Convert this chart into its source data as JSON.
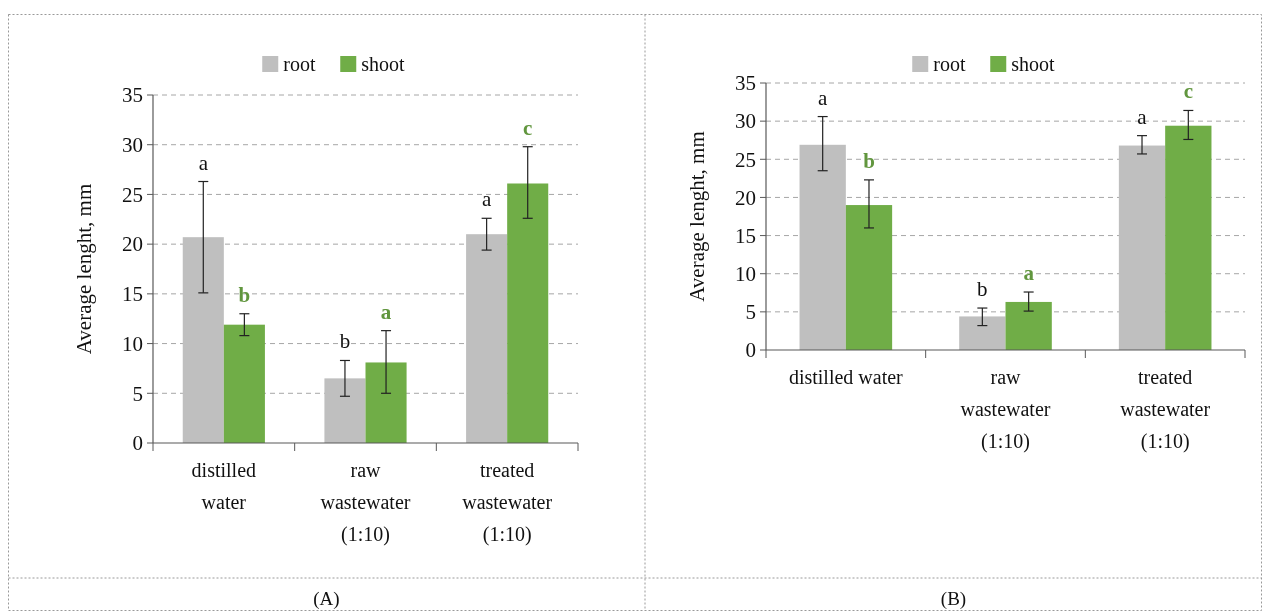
{
  "chart_data": [
    {
      "type": "bar",
      "ylabel": "Average lenght, mm",
      "categories": [
        "distilled\nwater",
        "raw\nwastewater\n(1:10)",
        "treated\nwastewater\n(1:10)"
      ],
      "series": [
        {
          "name": "root",
          "color": "#bfbfbf",
          "values": [
            20.7,
            6.5,
            21.0
          ],
          "errors": [
            [
              15.1,
              26.3
            ],
            [
              4.7,
              8.3
            ],
            [
              19.4,
              22.6
            ]
          ]
        },
        {
          "name": "shoot",
          "color": "#70ad47",
          "values": [
            11.9,
            8.1,
            26.1
          ],
          "errors": [
            [
              10.8,
              13.0
            ],
            [
              5.0,
              11.3
            ],
            [
              22.6,
              29.8
            ]
          ]
        }
      ],
      "ylim": [
        0,
        35
      ],
      "yticks": [
        0,
        5,
        10,
        15,
        20,
        25,
        30,
        35
      ],
      "grid": "y",
      "legend": "top",
      "annotations": [
        "a",
        "b",
        "b",
        "a",
        "a",
        "c",
        "(A)"
      ]
    },
    {
      "type": "bar",
      "ylabel": "Average lenght, mm",
      "categories": [
        "distilled water",
        "raw\nwastewater\n(1:10)",
        "treated\nwastewater\n(1:10)"
      ],
      "series": [
        {
          "name": "root",
          "color": "#bfbfbf",
          "values": [
            26.9,
            4.4,
            26.8
          ],
          "errors": [
            [
              23.5,
              30.6
            ],
            [
              3.2,
              5.5
            ],
            [
              25.7,
              28.1
            ]
          ]
        },
        {
          "name": "shoot",
          "color": "#70ad47",
          "values": [
            19.0,
            6.3,
            29.4
          ],
          "errors": [
            [
              16.0,
              22.3
            ],
            [
              5.1,
              7.6
            ],
            [
              27.6,
              31.4
            ]
          ]
        }
      ],
      "ylim": [
        0,
        35
      ],
      "yticks": [
        0,
        5,
        10,
        15,
        20,
        25,
        30,
        35
      ],
      "grid": "y",
      "legend": "top",
      "annotations": [
        "a",
        "b",
        "b",
        "a",
        "a",
        "c",
        "(B)"
      ]
    }
  ]
}
